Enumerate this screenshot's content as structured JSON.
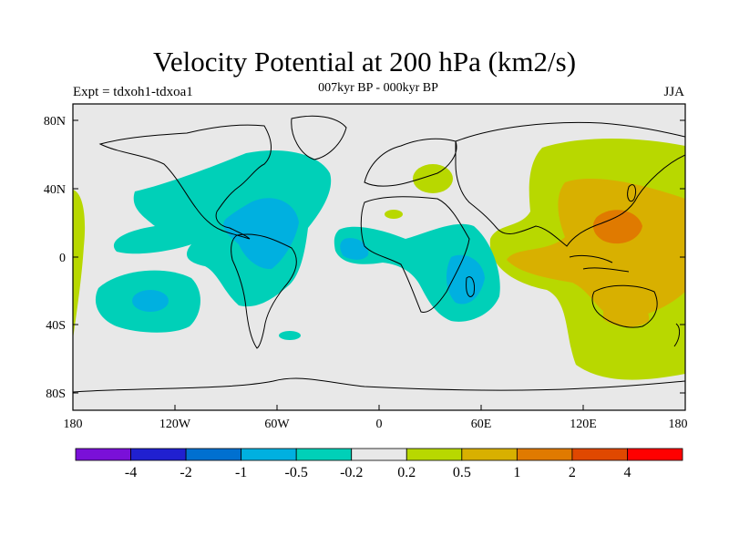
{
  "title": "Velocity Potential at 200 hPa (km2/s)",
  "subtitle": "007kyr BP - 000kyr BP",
  "left_label": "Expt = tdxoh1-tdxoa1",
  "right_label": "JJA",
  "y_ticks": [
    "80N",
    "40N",
    "0",
    "40S",
    "80S"
  ],
  "x_ticks": [
    "180",
    "120W",
    "60W",
    "0",
    "60E",
    "120E",
    "180"
  ],
  "colorbar": {
    "colors": [
      "#7a10d8",
      "#2020d0",
      "#0070d0",
      "#00b0e0",
      "#00d0b8",
      "#e8e8e8",
      "#b8d800",
      "#d8b000",
      "#e07a00",
      "#e04800",
      "#ff0000"
    ],
    "labels": [
      "-4",
      "-2",
      "-1",
      "-0.5",
      "-0.2",
      "0.2",
      "0.5",
      "1",
      "2",
      "4"
    ]
  }
}
